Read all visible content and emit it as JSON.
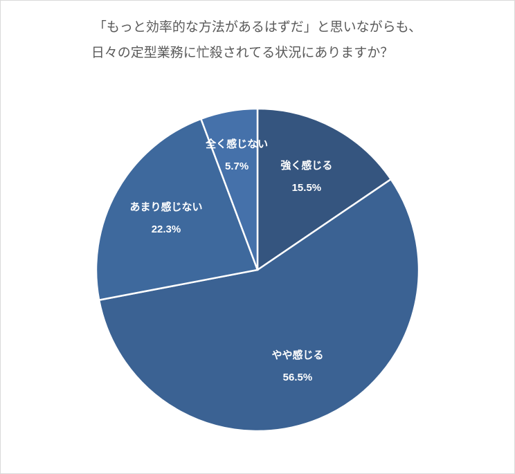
{
  "chart_data": {
    "type": "pie",
    "title": [
      "「もっと効率的な方法があるはずだ」と思いながらも、",
      "日々の定型業務に忙殺されてる状況にありますか？"
    ],
    "categories": [
      "強く感じる",
      "やや感じる",
      "あまり感じない",
      "全く感じない"
    ],
    "values": [
      15.5,
      56.5,
      22.3,
      5.7
    ],
    "value_labels": [
      "15.5%",
      "56.5%",
      "22.3%",
      "5.7%"
    ],
    "colors": [
      "#35557f",
      "#3b6293",
      "#3e699d",
      "#4571aa"
    ]
  }
}
